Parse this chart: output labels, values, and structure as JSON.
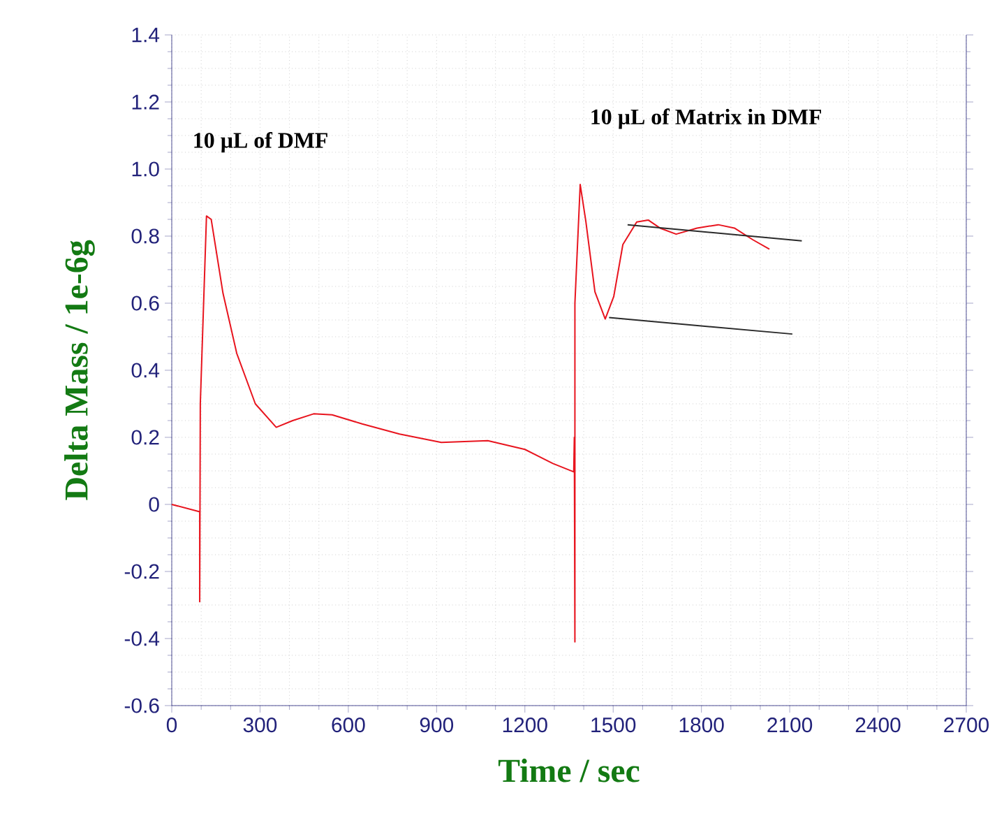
{
  "chart_data": {
    "type": "line",
    "xlabel": "Time / sec",
    "ylabel": "Delta Mass / 1e-6g",
    "xlim": [
      0,
      2700
    ],
    "xticks": [
      0,
      300,
      600,
      900,
      1200,
      1500,
      1800,
      2100,
      2400,
      2700
    ],
    "ylim": [
      -0.6,
      1.4
    ],
    "yticks": [
      -0.6,
      -0.4,
      -0.2,
      0,
      0.2,
      0.4,
      0.6,
      0.8,
      {
        "value": 1.0,
        "label": "1.0"
      },
      1.2,
      1.4
    ],
    "grid": true,
    "marker": "none",
    "line_style": "solid",
    "annotations": [
      "10 µL of DMF",
      "10 µL of Matrix in DMF"
    ],
    "series": [
      {
        "color": "#e8141e",
        "x": [
          0,
          95,
          95,
          97,
          118,
          134,
          174,
          221,
          284,
          355,
          411,
          482,
          545,
          647,
          774,
          916,
          1074,
          1200,
          1295,
          1366,
          1368,
          1370,
          1370,
          1388,
          1407,
          1438,
          1473,
          1502,
          1533,
          1580,
          1619,
          1659,
          1714,
          1785,
          1857,
          1912,
          1975,
          2031
        ],
        "values": [
          0,
          -0.022,
          -0.29,
          0.3,
          0.86,
          0.85,
          0.63,
          0.45,
          0.3,
          0.23,
          0.25,
          0.27,
          0.267,
          0.24,
          0.21,
          0.185,
          0.19,
          0.164,
          0.122,
          0.097,
          0.2,
          -0.41,
          0.6,
          0.954,
          0.845,
          0.634,
          0.553,
          0.62,
          0.775,
          0.842,
          0.848,
          0.824,
          0.806,
          0.824,
          0.834,
          0.824,
          0.789,
          0.761
        ]
      },
      {
        "color": "#2a2a2a",
        "x": [
          1549,
          2141
        ],
        "values": [
          0.834,
          0.786
        ]
      },
      {
        "color": "#2a2a2a",
        "x": [
          1486,
          2109
        ],
        "values": [
          0.557,
          0.508
        ]
      }
    ]
  }
}
